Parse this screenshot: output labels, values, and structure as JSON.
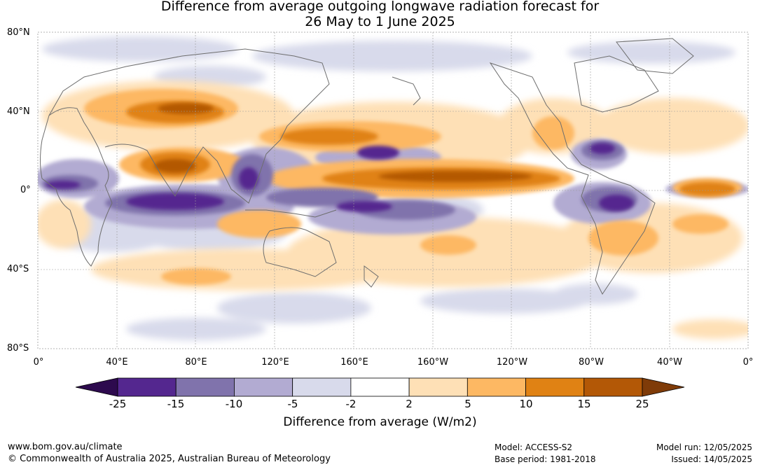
{
  "title": {
    "line1": "Difference from average outgoing longwave radiation forecast for",
    "line2": "26 May to 1 June 2025"
  },
  "map": {
    "lat_labels": [
      "80°N",
      "40°N",
      "0°",
      "40°S",
      "80°S"
    ],
    "lon_labels": [
      "0°",
      "40°E",
      "80°E",
      "120°E",
      "160°E",
      "160°W",
      "120°W",
      "80°W",
      "40°W",
      "0°"
    ]
  },
  "colorbar": {
    "ticks": [
      "-25",
      "-15",
      "-10",
      "-5",
      "-2",
      "2",
      "5",
      "10",
      "15",
      "25"
    ],
    "colors": [
      "#2d0a4e",
      "#54278f",
      "#8073ac",
      "#b2abd2",
      "#d8daeb",
      "#ffffff",
      "#fee0b6",
      "#fdb863",
      "#e08214",
      "#b35806",
      "#7f3b08"
    ],
    "label": "Difference from average (W/m2)"
  },
  "footer": {
    "website": "www.bom.gov.au/climate",
    "copyright": "© Commonwealth of Australia 2025, Australian Bureau of Meteorology",
    "model": "Model: ACCESS-S2",
    "base_period": "Base period: 1981-2018",
    "model_run": "Model run: 12/05/2025",
    "issued": "Issued: 14/05/2025"
  }
}
